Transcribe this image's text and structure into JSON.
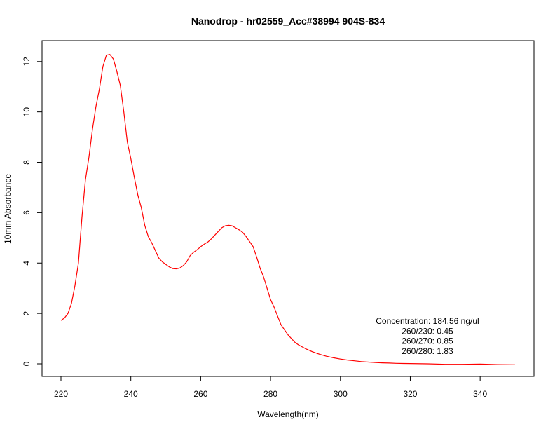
{
  "chart_data": {
    "type": "line",
    "title": "Nanodrop - hr02559_Acc#38994 904S-834",
    "xlabel": "Wavelength(nm)",
    "ylabel": "10mm Absorbance",
    "xlim": [
      220,
      350
    ],
    "ylim": [
      0,
      12.3
    ],
    "x_ticks": [
      220,
      240,
      260,
      280,
      300,
      320,
      340
    ],
    "y_ticks": [
      0,
      2,
      4,
      6,
      8,
      10,
      12
    ],
    "x_tick_labels": [
      "220",
      "240",
      "260",
      "280",
      "300",
      "320",
      "340"
    ],
    "y_tick_labels": [
      "0",
      "2",
      "4",
      "6",
      "8",
      "10",
      "12"
    ],
    "grid": false,
    "series": [
      {
        "color": "#ff0000",
        "x": [
          220,
          221,
          222,
          223,
          224,
          225,
          226,
          227,
          228,
          229,
          230,
          231,
          232,
          233,
          234,
          235,
          236,
          237,
          238,
          239,
          240,
          241,
          242,
          243,
          244,
          245,
          246,
          247,
          248,
          249,
          250,
          251,
          252,
          253,
          254,
          255,
          256,
          257,
          258,
          259,
          260,
          261,
          262,
          263,
          264,
          265,
          266,
          267,
          268,
          269,
          270,
          271,
          272,
          273,
          274,
          275,
          276,
          277,
          278,
          279,
          280,
          281,
          282,
          283,
          284,
          285,
          286,
          287,
          288,
          289,
          290,
          292,
          294,
          296,
          298,
          300,
          302,
          304,
          306,
          308,
          310,
          312,
          314,
          316,
          318,
          320,
          325,
          330,
          335,
          340,
          345,
          350
        ],
        "y": [
          1.72,
          1.82,
          2.0,
          2.4,
          3.1,
          4.0,
          5.8,
          7.3,
          8.2,
          9.3,
          10.2,
          10.9,
          11.8,
          12.25,
          12.28,
          12.1,
          11.6,
          11.05,
          10.0,
          8.8,
          8.15,
          7.4,
          6.7,
          6.2,
          5.5,
          5.05,
          4.8,
          4.5,
          4.2,
          4.05,
          3.95,
          3.85,
          3.78,
          3.77,
          3.8,
          3.9,
          4.05,
          4.3,
          4.43,
          4.53,
          4.65,
          4.75,
          4.83,
          4.95,
          5.1,
          5.25,
          5.4,
          5.48,
          5.5,
          5.48,
          5.4,
          5.32,
          5.22,
          5.05,
          4.85,
          4.65,
          4.25,
          3.8,
          3.45,
          3.0,
          2.55,
          2.25,
          1.9,
          1.55,
          1.35,
          1.15,
          1.0,
          0.85,
          0.75,
          0.68,
          0.6,
          0.48,
          0.38,
          0.3,
          0.24,
          0.19,
          0.15,
          0.12,
          0.09,
          0.07,
          0.05,
          0.04,
          0.03,
          0.02,
          0.015,
          0.01,
          0.0,
          -0.02,
          -0.02,
          -0.01,
          -0.03,
          -0.04
        ]
      }
    ],
    "annotations": [
      "Concentration: 184.56 ng/ul",
      "260/230: 0.45",
      "260/270: 0.85",
      "260/280: 1.83"
    ]
  }
}
